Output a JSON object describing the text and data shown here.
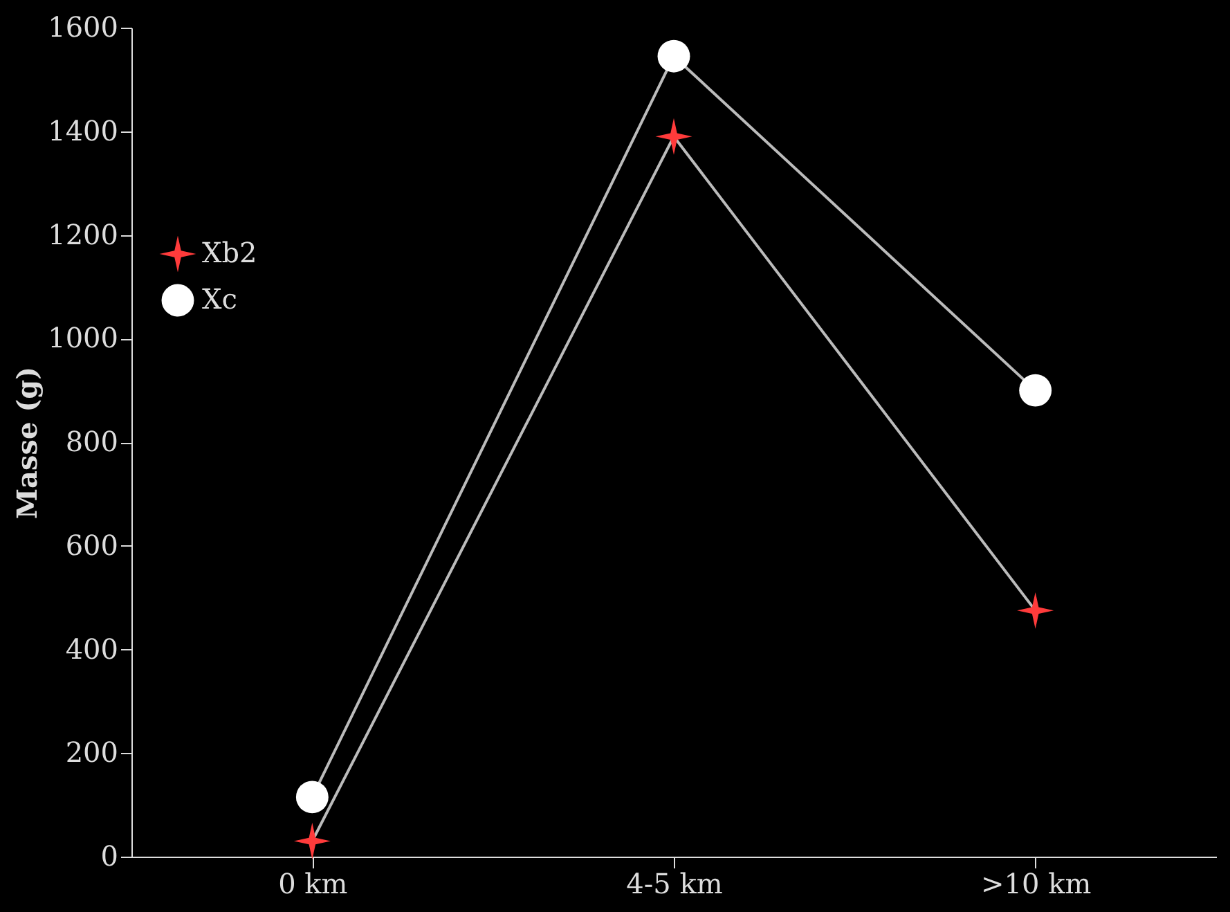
{
  "chart_data": {
    "type": "line",
    "ylabel": "Masse (g)",
    "categories": [
      "0 km",
      "4-5 km",
      ">10 km"
    ],
    "series": [
      {
        "name": "Xb2",
        "color": "#ff3b3b",
        "marker": "star",
        "values": [
          30,
          1390,
          475
        ]
      },
      {
        "name": "Xc",
        "color": "#ffffff",
        "marker": "circle",
        "values": [
          115,
          1545,
          900
        ]
      }
    ],
    "ylim": [
      0,
      1600
    ],
    "yticks": [
      0,
      200,
      400,
      600,
      800,
      1000,
      1200,
      1400,
      1600
    ],
    "grid": false,
    "legend": "top left",
    "line_style": "solid"
  }
}
